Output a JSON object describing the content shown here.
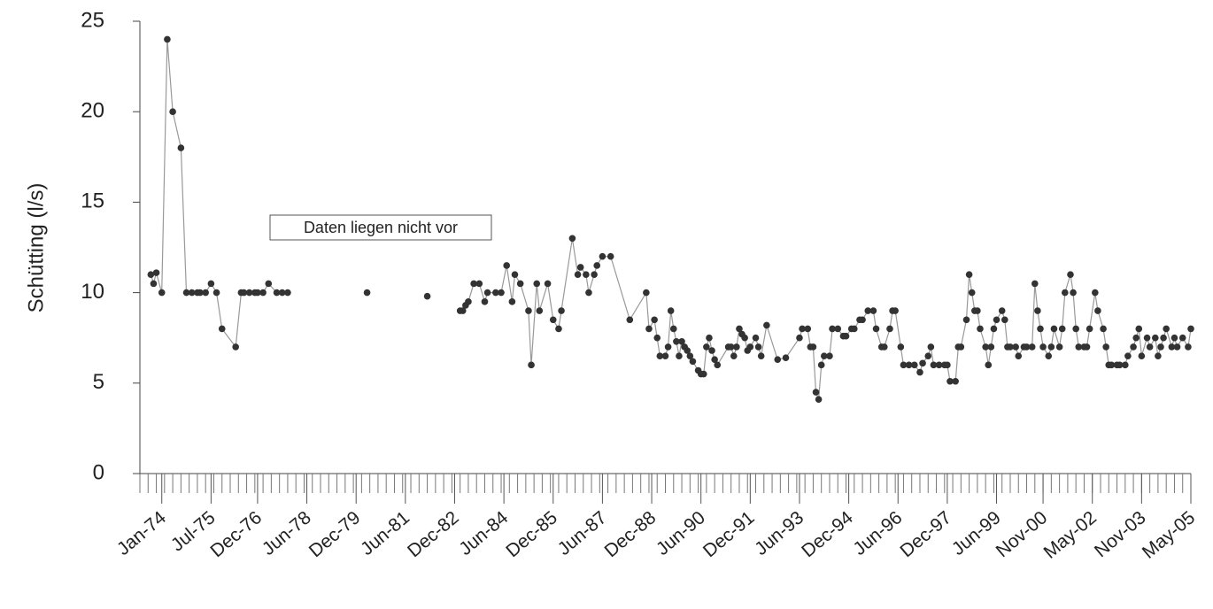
{
  "chart_data": {
    "type": "line",
    "ylabel": "Schütting (l/s)",
    "annotation": "Daten liegen nicht vor",
    "xlim": [
      "1973-05",
      "2005-05"
    ],
    "xticks": [
      {
        "value": "1974-01",
        "label": "Jan-74"
      },
      {
        "value": "1975-07",
        "label": "Jul-75"
      },
      {
        "value": "1976-12",
        "label": "Dec-76"
      },
      {
        "value": "1978-06",
        "label": "Jun-78"
      },
      {
        "value": "1979-12",
        "label": "Dec-79"
      },
      {
        "value": "1981-06",
        "label": "Jun-81"
      },
      {
        "value": "1982-12",
        "label": "Dec-82"
      },
      {
        "value": "1984-06",
        "label": "Jun-84"
      },
      {
        "value": "1985-12",
        "label": "Dec-85"
      },
      {
        "value": "1987-06",
        "label": "Jun-87"
      },
      {
        "value": "1988-12",
        "label": "Dec-88"
      },
      {
        "value": "1990-06",
        "label": "Jun-90"
      },
      {
        "value": "1991-12",
        "label": "Dec-91"
      },
      {
        "value": "1993-06",
        "label": "Jun-93"
      },
      {
        "value": "1994-12",
        "label": "Dec-94"
      },
      {
        "value": "1996-06",
        "label": "Jun-96"
      },
      {
        "value": "1997-12",
        "label": "Dec-97"
      },
      {
        "value": "1999-06",
        "label": "Jun-99"
      },
      {
        "value": "2000-11",
        "label": "Nov-00"
      },
      {
        "value": "2002-05",
        "label": "May-02"
      },
      {
        "value": "2003-11",
        "label": "Nov-03"
      },
      {
        "value": "2005-05",
        "label": "May-05"
      }
    ],
    "ylim": [
      0,
      25
    ],
    "yticks": [
      0,
      5,
      10,
      15,
      20,
      25
    ],
    "line_color": "#999999",
    "marker_color": "#333333",
    "x": [
      "1973-09",
      "1973-10",
      "1973-11",
      "1974-01",
      "1974-03",
      "1974-05",
      "1974-08",
      "1974-10",
      "1974-12",
      "1975-02",
      "1975-03",
      "1975-05",
      "1975-07",
      "1975-09",
      "1975-11",
      "1976-04",
      "1976-06",
      "1976-07",
      "1976-09",
      "1976-11",
      "1976-12",
      "1977-02",
      "1977-04",
      "1977-07",
      "1977-09",
      "1977-11",
      null,
      "1980-04",
      null,
      "1982-02",
      null,
      "1983-02",
      "1983-03",
      "1983-04",
      "1983-05",
      "1983-07",
      "1983-09",
      "1983-11",
      "1983-12",
      "1984-03",
      "1984-05",
      "1984-07",
      "1984-09",
      "1984-10",
      "1984-12",
      "1985-03",
      "1985-04",
      "1985-06",
      "1985-07",
      "1985-10",
      "1985-12",
      "1986-02",
      "1986-03",
      "1986-07",
      "1986-09",
      "1986-10",
      "1986-12",
      "1987-01",
      "1987-03",
      "1987-04",
      "1987-06",
      "1987-09",
      "1988-04",
      "1988-10",
      "1988-11",
      "1989-01",
      "1989-02",
      "1989-03",
      "1989-05",
      "1989-06",
      "1989-07",
      "1989-08",
      "1989-09",
      "1989-10",
      "1989-11",
      "1989-12",
      "1990-01",
      "1990-02",
      "1990-03",
      "1990-05",
      "1990-06",
      "1990-07",
      "1990-08",
      "1990-09",
      "1990-10",
      "1990-11",
      "1990-12",
      "1991-04",
      "1991-05",
      "1991-06",
      "1991-07",
      "1991-08",
      "1991-09",
      "1991-10",
      "1991-11",
      "1991-12",
      "1992-02",
      "1992-03",
      "1992-04",
      "1992-06",
      "1992-10",
      "1993-01",
      "1993-06",
      "1993-07",
      "1993-09",
      "1993-10",
      "1993-11",
      "1993-12",
      "1994-01",
      "1994-02",
      "1994-03",
      "1994-05",
      "1994-06",
      "1994-08",
      "1994-10",
      "1994-11",
      "1995-01",
      "1995-02",
      "1995-04",
      "1995-05",
      "1995-07",
      "1995-09",
      "1995-10",
      "1995-12",
      "1996-01",
      "1996-03",
      "1996-04",
      "1996-05",
      "1996-07",
      "1996-08",
      "1996-10",
      "1996-12",
      "1997-02",
      "1997-03",
      "1997-05",
      "1997-06",
      "1997-07",
      "1997-09",
      "1997-11",
      "1997-12",
      "1998-01",
      "1998-03",
      "1998-04",
      "1998-05",
      "1998-07",
      "1998-08",
      "1998-09",
      "1998-10",
      "1998-11",
      "1998-12",
      "1999-02",
      "1999-03",
      "1999-04",
      "1999-05",
      "1999-06",
      "1999-08",
      "1999-09",
      "1999-10",
      "1999-11",
      "2000-01",
      "2000-02",
      "2000-04",
      "2000-05",
      "2000-07",
      "2000-08",
      "2000-09",
      "2000-10",
      "2000-11",
      "2001-01",
      "2001-02",
      "2001-03",
      "2001-05",
      "2001-06",
      "2001-07",
      "2001-09",
      "2001-10",
      "2001-11",
      "2001-12",
      "2002-02",
      "2002-03",
      "2002-04",
      "2002-06",
      "2002-07",
      "2002-09",
      "2002-10",
      "2002-11",
      "2002-12",
      "2003-02",
      "2003-03",
      "2003-05",
      "2003-06",
      "2003-08",
      "2003-09",
      "2003-10",
      "2003-11",
      "2004-01",
      "2004-02",
      "2004-04",
      "2004-05",
      "2004-06",
      "2004-07",
      "2004-08",
      "2004-10",
      "2004-11",
      "2004-12",
      "2005-02",
      "2005-04",
      "2005-05"
    ],
    "values": [
      11,
      10.5,
      11.1,
      10,
      24,
      20,
      18,
      10,
      10,
      10,
      10,
      10,
      10.5,
      10,
      8,
      7,
      10,
      10,
      10,
      10,
      10,
      10,
      10.5,
      10,
      10,
      10,
      null,
      10,
      null,
      9.8,
      null,
      9,
      9,
      9.3,
      9.5,
      10.5,
      10.5,
      9.5,
      10,
      10,
      10,
      11.5,
      9.5,
      11,
      10.5,
      9,
      6,
      10.5,
      9,
      10.5,
      8.5,
      8,
      9,
      13,
      11,
      11.4,
      11,
      10,
      11,
      11.5,
      12,
      12,
      8.5,
      10,
      8,
      8.5,
      7.5,
      6.5,
      6.5,
      7,
      9,
      8,
      7.3,
      6.5,
      7.3,
      7,
      6.8,
      6.5,
      6.2,
      5.7,
      5.5,
      5.5,
      7,
      7.5,
      6.8,
      6.3,
      6,
      7,
      7,
      6.5,
      7,
      8,
      7.7,
      7.5,
      6.8,
      7,
      7.5,
      7,
      6.5,
      8.2,
      6.3,
      6.4,
      7.5,
      8,
      8,
      7,
      7,
      4.5,
      4.1,
      6,
      6.5,
      6.5,
      8,
      8,
      7.6,
      7.6,
      8,
      8,
      8.5,
      8.5,
      9,
      9,
      8,
      7,
      7,
      8,
      9,
      9,
      7,
      6,
      6,
      6,
      5.6,
      6.1,
      6.5,
      7,
      6,
      6,
      6,
      6,
      5.1,
      5.1,
      7,
      7,
      8.5,
      11,
      10,
      9,
      9,
      8,
      7,
      6,
      7,
      8,
      8.5,
      9,
      8.5,
      7,
      7,
      7,
      6.5,
      7,
      7,
      7,
      10.5,
      9,
      8,
      7,
      6.5,
      7,
      8,
      7,
      8,
      10,
      11,
      10,
      8,
      7,
      7,
      7,
      8,
      10,
      9,
      8,
      7,
      6,
      6,
      6,
      6,
      6,
      6.5,
      7,
      7.5,
      8,
      6.5,
      7.5,
      7,
      7.5,
      6.5,
      7,
      7.5,
      8,
      7,
      7.5,
      7,
      7.5,
      7,
      8
    ]
  }
}
